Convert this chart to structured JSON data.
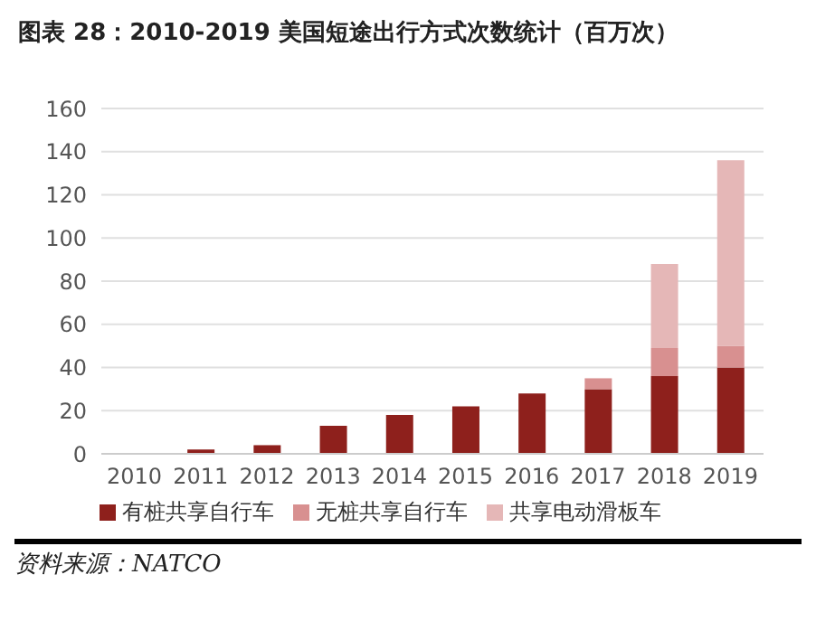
{
  "chart_data": {
    "type": "bar",
    "title": "图表 28：2010-2019 美国短途出行方式次数统计（百万次）",
    "annotations": [
      "资料来源：NATCO"
    ],
    "categories": [
      "2010",
      "2011",
      "2012",
      "2013",
      "2014",
      "2015",
      "2016",
      "2017",
      "2018",
      "2019"
    ],
    "series": [
      {
        "name": "有桩共享自行车",
        "color": "#8e201c",
        "values": [
          null,
          2,
          4,
          13,
          18,
          22,
          28,
          30,
          36,
          40
        ]
      },
      {
        "name": "无桩共享自行车",
        "color": "#d89090",
        "values": [
          0,
          0,
          0,
          0,
          0,
          0,
          0,
          5,
          13,
          10
        ]
      },
      {
        "name": "共享电动滑板车",
        "color": "#e5b7b7",
        "values": [
          0,
          0,
          0,
          0,
          0,
          0,
          0,
          0,
          39,
          86
        ]
      }
    ],
    "stacked": true,
    "ylim": [
      0,
      160
    ],
    "yticks": [
      0,
      20,
      40,
      60,
      80,
      100,
      120,
      140,
      160
    ],
    "grid": "y",
    "legend": "bottom"
  }
}
